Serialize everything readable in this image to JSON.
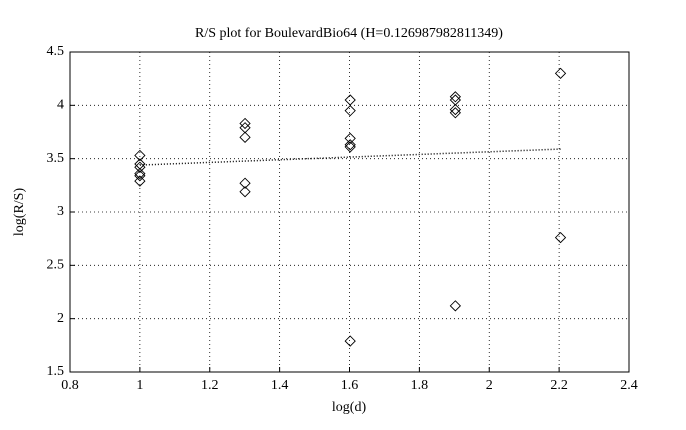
{
  "chart_data": {
    "type": "scatter",
    "title": "R/S plot for BoulevardBio64 (H=0.126987982811349)",
    "x_label": "log(d)",
    "y_label": "log(R/S)",
    "xlim": [
      0.8,
      2.4
    ],
    "ylim": [
      1.5,
      4.5
    ],
    "xticks": [
      0.8,
      1,
      1.2,
      1.4,
      1.6,
      1.8,
      2,
      2.2,
      2.4
    ],
    "yticks": [
      1.5,
      2,
      2.5,
      3,
      3.5,
      4,
      4.5
    ],
    "grid": true,
    "series": [
      {
        "mode": "markers",
        "marker": "diamond",
        "color": "#000000",
        "x": [
          1,
          1,
          1,
          1,
          1,
          1,
          1.301,
          1.301,
          1.301,
          1.301,
          1.301,
          1.602,
          1.602,
          1.602,
          1.602,
          1.602,
          1.602,
          1.903,
          1.903,
          1.903,
          1.903,
          1.903,
          2.204,
          2.204
        ],
        "values": [
          3.53,
          3.45,
          3.42,
          3.36,
          3.34,
          3.29,
          3.83,
          3.79,
          3.7,
          3.27,
          3.19,
          4.05,
          3.95,
          3.69,
          3.63,
          3.61,
          1.79,
          4.08,
          4.05,
          3.96,
          3.93,
          2.12,
          4.3,
          2.76
        ]
      },
      {
        "mode": "line",
        "line_style": "dotted",
        "color": "#000000",
        "x": [
          1,
          2.204
        ],
        "values": [
          3.44,
          3.59
        ]
      }
    ]
  }
}
